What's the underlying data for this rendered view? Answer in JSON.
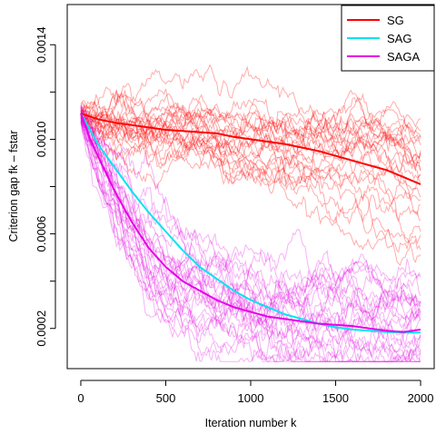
{
  "chart_data": {
    "type": "line",
    "title": "",
    "xlabel": "Iteration number k",
    "ylabel": "Criterion gap fk – fstar",
    "xlim": [
      -80,
      2080
    ],
    "ylim": [
      3e-05,
      0.00157
    ],
    "x_ticks": [
      0,
      500,
      1000,
      1500,
      2000
    ],
    "x_tick_labels": [
      "0",
      "500",
      "1000",
      "1500",
      "2000"
    ],
    "y_ticks": [
      0.0002,
      0.0004,
      0.0006,
      0.0008,
      0.001,
      0.0012,
      0.0014
    ],
    "y_tick_labels": [
      "0.0002",
      "",
      "0.0006",
      "",
      "0.0010",
      "",
      "0.0014"
    ],
    "grid": false,
    "legend_position": "top-right",
    "series": [
      {
        "name": "SG",
        "color": "#ff0000",
        "x": [
          0,
          100,
          200,
          300,
          400,
          500,
          600,
          700,
          800,
          900,
          1000,
          1100,
          1200,
          1300,
          1400,
          1500,
          1600,
          1700,
          1800,
          1900,
          2000
        ],
        "values": [
          0.00111,
          0.001085,
          0.00107,
          0.00106,
          0.00105,
          0.00104,
          0.001035,
          0.00103,
          0.001025,
          0.00101,
          0.001,
          0.00099,
          0.00098,
          0.000965,
          0.00095,
          0.00093,
          0.00091,
          0.00089,
          0.00087,
          0.00084,
          0.00081
        ]
      },
      {
        "name": "SAG",
        "color": "#00e5ee",
        "x": [
          0,
          100,
          200,
          300,
          400,
          500,
          600,
          700,
          800,
          900,
          1000,
          1100,
          1200,
          1300,
          1400,
          1500,
          1600,
          1700,
          1800,
          1900,
          2000
        ],
        "values": [
          0.00111,
          0.00098,
          0.00088,
          0.00078,
          0.00069,
          0.00061,
          0.00053,
          0.00046,
          0.00041,
          0.00036,
          0.00032,
          0.00029,
          0.00026,
          0.00024,
          0.00022,
          0.000205,
          0.000195,
          0.00019,
          0.000185,
          0.000183,
          0.000183
        ]
      },
      {
        "name": "SAGA",
        "color": "#e600e6",
        "x": [
          0,
          50,
          100,
          200,
          300,
          400,
          500,
          600,
          700,
          800,
          900,
          1000,
          1100,
          1200,
          1300,
          1400,
          1500,
          1600,
          1700,
          1800,
          1900,
          2000
        ],
        "values": [
          0.00111,
          0.00101,
          0.00093,
          0.00078,
          0.00065,
          0.00054,
          0.00046,
          0.0004,
          0.00036,
          0.00032,
          0.00029,
          0.00027,
          0.00025,
          0.00024,
          0.00023,
          0.00022,
          0.000215,
          0.00021,
          0.0002,
          0.00019,
          0.000185,
          0.000195
        ]
      }
    ]
  }
}
